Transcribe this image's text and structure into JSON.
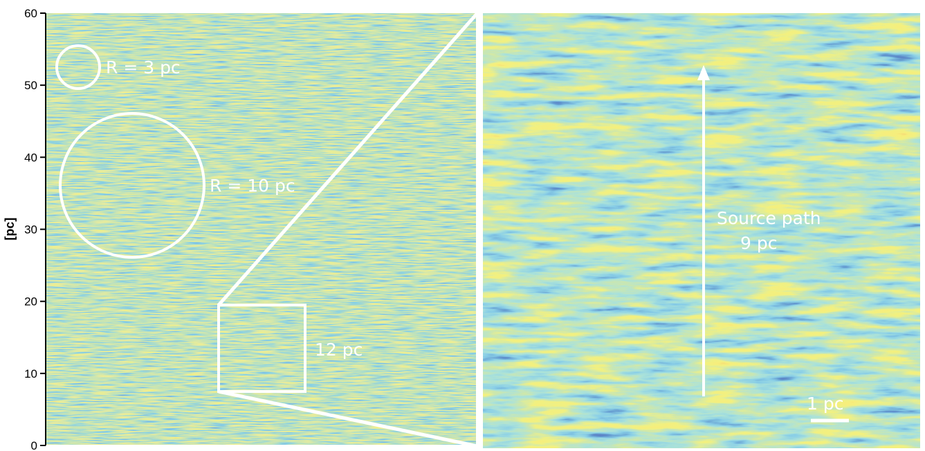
{
  "left_panel": {
    "y_axis_label": "[pc]",
    "y_ticks": [
      "0",
      "10",
      "20",
      "30",
      "40",
      "50",
      "60"
    ],
    "ylim": [
      0,
      60
    ],
    "circle_small_label": "R = 3 pc",
    "circle_large_label": "R = 10 pc",
    "box_label": "12 pc"
  },
  "right_panel": {
    "path_label_line1": "Source path",
    "path_label_line2": "9 pc",
    "scale_bar_label": "1 pc"
  },
  "colors": {
    "low": "#1e2f8c",
    "mid_low": "#3fa6c8",
    "mid": "#8cc86e",
    "high": "#e8e632",
    "peak": "#e84a2a",
    "annotation": "#ffffff"
  }
}
